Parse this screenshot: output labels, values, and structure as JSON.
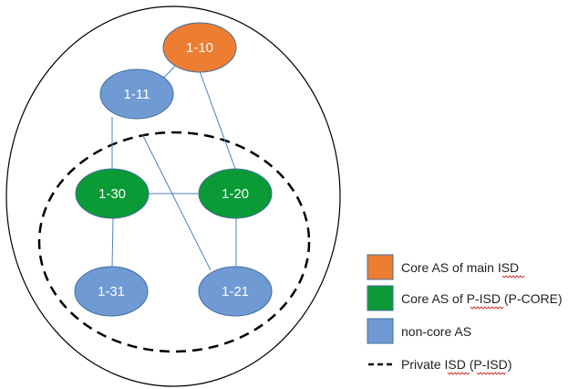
{
  "colors": {
    "core_main": "#ed7d31",
    "core_pisd": "#0a9a36",
    "noncore": "#6f9ad3",
    "node_stroke": "#41719c",
    "link": "#4f81bd",
    "outline": "#000000"
  },
  "nodes": {
    "n_1_10": {
      "label": "1-10",
      "kind": "core_main"
    },
    "n_1_11": {
      "label": "1-11",
      "kind": "noncore"
    },
    "n_1_30": {
      "label": "1-30",
      "kind": "core_pisd"
    },
    "n_1_20": {
      "label": "1-20",
      "kind": "core_pisd"
    },
    "n_1_31": {
      "label": "1-31",
      "kind": "noncore"
    },
    "n_1_21": {
      "label": "1-21",
      "kind": "noncore"
    }
  },
  "links": [
    [
      "n_1_10",
      "n_1_11"
    ],
    [
      "n_1_10",
      "n_1_20"
    ],
    [
      "n_1_11",
      "n_1_30"
    ],
    [
      "n_1_11",
      "n_1_21"
    ],
    [
      "n_1_30",
      "n_1_20"
    ],
    [
      "n_1_30",
      "n_1_31"
    ],
    [
      "n_1_20",
      "n_1_21"
    ]
  ],
  "legend": {
    "core_main": "Core AS of main ISD",
    "core_pisd": "Core AS of P-ISD (P-CORE)",
    "noncore": "non-core AS",
    "private_isd": "Private ISD (P-ISD)"
  }
}
